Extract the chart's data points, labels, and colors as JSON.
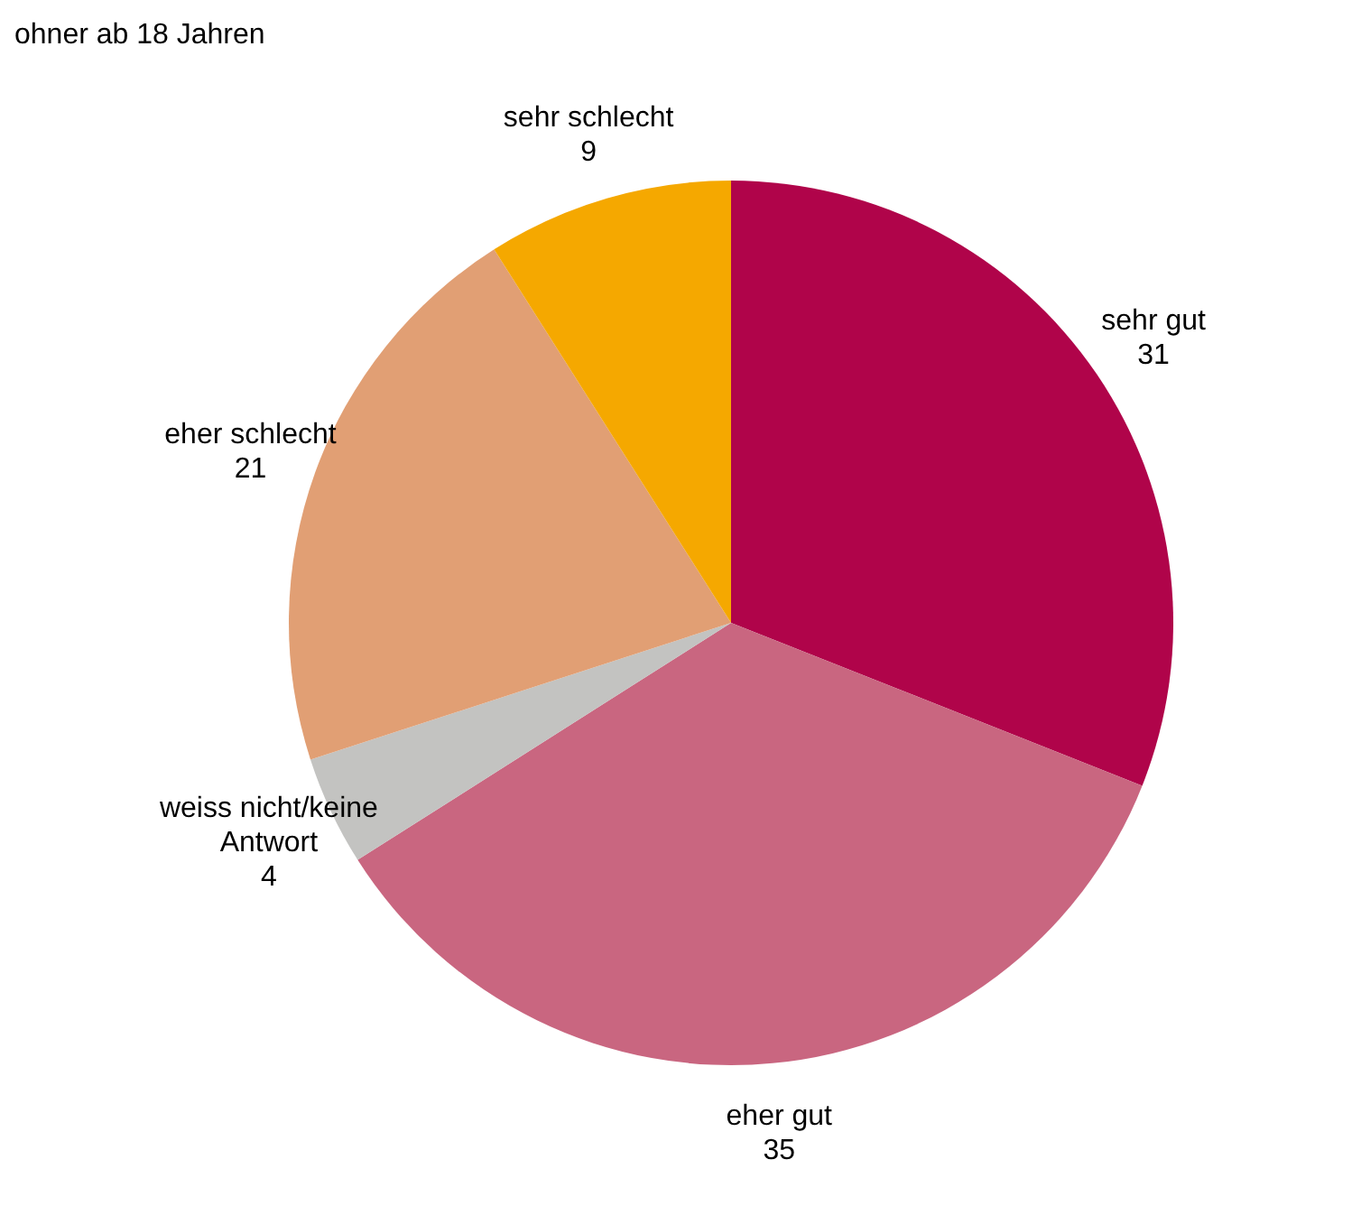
{
  "chart_data": {
    "type": "pie",
    "subtitle": "ohner ab 18 Jahren",
    "categories": [
      "sehr gut",
      "eher gut",
      "weiss nicht/keine Antwort",
      "eher schlecht",
      "sehr schlecht"
    ],
    "values": [
      31,
      35,
      4,
      21,
      9
    ],
    "colors": [
      "#b0044a",
      "#c96680",
      "#c3c3c1",
      "#e19f74",
      "#f5a800"
    ],
    "data_labels": true
  }
}
